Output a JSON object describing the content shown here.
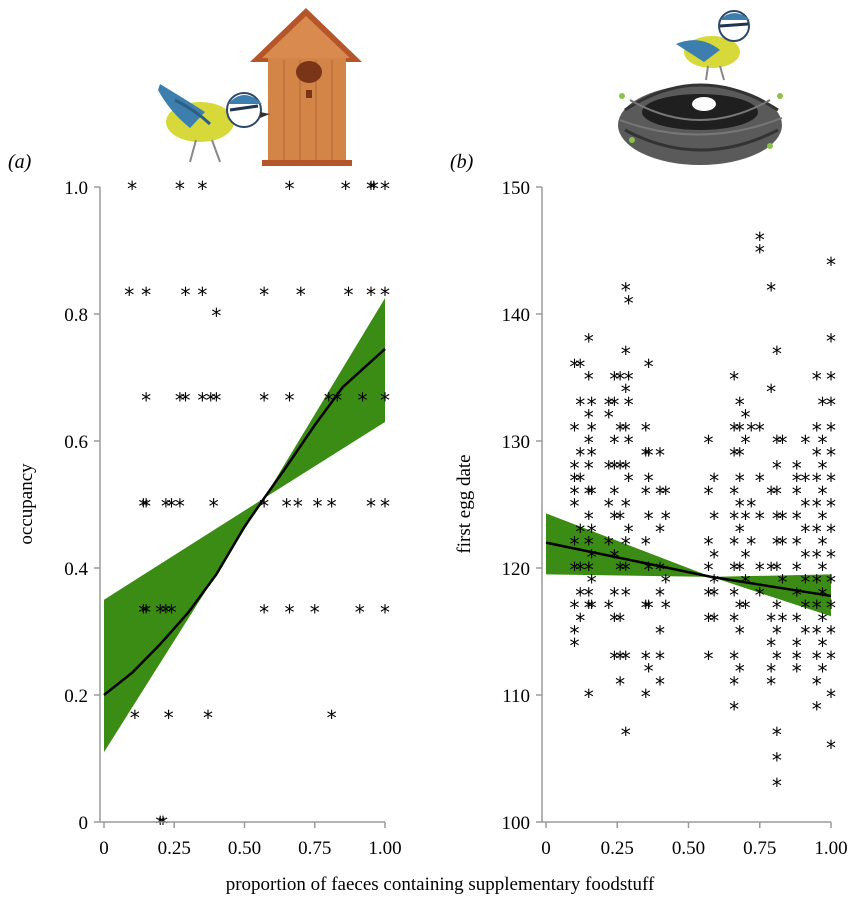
{
  "figure": {
    "shared_xlabel": "proportion of faeces containing supplementary foodstuff",
    "colors": {
      "band": "#3a8c14",
      "line": "#000000",
      "axis": "#9a9a9a",
      "points": "#000000"
    },
    "illustrations": [
      {
        "name": "blue-tit-with-nest-box-icon",
        "panel": "a"
      },
      {
        "name": "blue-tit-on-nest-icon",
        "panel": "b"
      }
    ]
  },
  "chart_data": [
    {
      "panel_label": "(a)",
      "type": "scatter",
      "title": "",
      "xlabel": "",
      "ylabel": "occupancy",
      "xlim": [
        0,
        1
      ],
      "ylim": [
        0,
        1
      ],
      "x_ticks": [
        "0",
        "0.25",
        "0.50",
        "0.75",
        "1.00"
      ],
      "y_ticks": [
        "0",
        "0.2",
        "0.4",
        "0.6",
        "0.8",
        "1.0"
      ],
      "y_tick_values": [
        0,
        0.2,
        0.4,
        0.6,
        0.8,
        1.0
      ],
      "grid": false,
      "marker": "*",
      "fit": {
        "x": [
          0,
          0.1,
          0.2,
          0.3,
          0.4,
          0.5,
          0.57,
          0.65,
          0.75,
          0.85,
          0.95,
          1.0
        ],
        "y": [
          0.2,
          0.235,
          0.28,
          0.33,
          0.39,
          0.465,
          0.51,
          0.56,
          0.625,
          0.685,
          0.725,
          0.745
        ]
      },
      "ci_band": {
        "x": [
          0,
          0.57,
          1.0
        ],
        "lower": [
          0.11,
          0.51,
          0.63
        ],
        "upper": [
          0.35,
          0.51,
          0.825
        ]
      },
      "points": {
        "x": [
          0.1,
          0.27,
          0.35,
          0.66,
          0.86,
          0.95,
          0.96,
          1.0,
          0.09,
          0.15,
          0.29,
          0.35,
          0.4,
          0.57,
          0.7,
          0.87,
          0.95,
          1.0,
          0.15,
          0.27,
          0.29,
          0.35,
          0.38,
          0.4,
          0.57,
          0.66,
          0.8,
          0.83,
          0.92,
          1.0,
          0.14,
          0.15,
          0.22,
          0.24,
          0.27,
          0.39,
          0.57,
          0.65,
          0.69,
          0.76,
          0.81,
          0.95,
          1.0,
          0.14,
          0.15,
          0.2,
          0.22,
          0.24,
          0.57,
          0.66,
          0.75,
          0.91,
          1.0,
          0.11,
          0.23,
          0.37,
          0.81,
          0.2,
          0.21
        ],
        "y": [
          1.0,
          1.0,
          1.0,
          1.0,
          1.0,
          1.0,
          1.0,
          1.0,
          0.833,
          0.833,
          0.833,
          0.833,
          0.8,
          0.833,
          0.833,
          0.833,
          0.833,
          0.833,
          0.667,
          0.667,
          0.667,
          0.667,
          0.667,
          0.667,
          0.667,
          0.667,
          0.667,
          0.667,
          0.667,
          0.667,
          0.5,
          0.5,
          0.5,
          0.5,
          0.5,
          0.5,
          0.5,
          0.5,
          0.5,
          0.5,
          0.5,
          0.5,
          0.5,
          0.333,
          0.333,
          0.333,
          0.333,
          0.333,
          0.333,
          0.333,
          0.333,
          0.333,
          0.333,
          0.167,
          0.167,
          0.167,
          0.167,
          0.0,
          0.0
        ]
      }
    },
    {
      "panel_label": "(b)",
      "type": "scatter",
      "title": "",
      "xlabel": "",
      "ylabel": "first egg date",
      "xlim": [
        0,
        1
      ],
      "ylim": [
        100,
        150
      ],
      "x_ticks": [
        "0",
        "0.25",
        "0.50",
        "0.75",
        "1.00"
      ],
      "y_ticks": [
        "100",
        "110",
        "120",
        "130",
        "140",
        "150"
      ],
      "y_tick_values": [
        100,
        110,
        120,
        130,
        140,
        150
      ],
      "grid": false,
      "marker": "*",
      "fit": {
        "x": [
          0,
          0.58,
          1.0
        ],
        "y": [
          122,
          119.3,
          117.8
        ]
      },
      "ci_band": {
        "x": [
          0,
          0.58,
          1.0
        ],
        "lower": [
          119.5,
          119.3,
          116.2
        ],
        "upper": [
          124.3,
          119.3,
          119.5
        ]
      },
      "points": {
        "columns": [
          {
            "x": 0.1,
            "y": [
              136,
              131,
              128,
              127,
              126,
              125,
              122,
              120,
              117,
              115,
              114
            ]
          },
          {
            "x": 0.12,
            "y": [
              136,
              133,
              129,
              127,
              123,
              120,
              118,
              116
            ]
          },
          {
            "x": 0.15,
            "y": [
              138,
              135,
              132,
              130,
              128,
              126,
              124,
              122,
              120,
              118,
              117,
              110
            ]
          },
          {
            "x": 0.16,
            "y": [
              133,
              131,
              129,
              126,
              123,
              121,
              119,
              117
            ]
          },
          {
            "x": 0.22,
            "y": [
              133,
              132,
              128,
              125,
              122,
              117
            ]
          },
          {
            "x": 0.24,
            "y": [
              135,
              133,
              130,
              128,
              126,
              124,
              121,
              118,
              116,
              113
            ]
          },
          {
            "x": 0.26,
            "y": [
              135,
              131,
              128,
              124,
              120,
              116,
              113,
              111
            ]
          },
          {
            "x": 0.28,
            "y": [
              142,
              137,
              134,
              131,
              128,
              125,
              122,
              120,
              118,
              113,
              107
            ]
          },
          {
            "x": 0.29,
            "y": [
              141,
              135,
              133,
              130,
              127,
              123
            ]
          },
          {
            "x": 0.35,
            "y": [
              131,
              129,
              126,
              122,
              117,
              113,
              110
            ]
          },
          {
            "x": 0.36,
            "y": [
              136,
              129,
              127,
              124,
              120,
              117,
              112
            ]
          },
          {
            "x": 0.4,
            "y": [
              129,
              126,
              123,
              120,
              118,
              115,
              113,
              111
            ]
          },
          {
            "x": 0.42,
            "y": [
              126,
              124,
              119,
              117
            ]
          },
          {
            "x": 0.57,
            "y": [
              130,
              126,
              122,
              120,
              118,
              116,
              113
            ]
          },
          {
            "x": 0.59,
            "y": [
              127,
              124,
              121,
              119,
              118,
              116
            ]
          },
          {
            "x": 0.66,
            "y": [
              135,
              131,
              129,
              126,
              124,
              122,
              120,
              118,
              116,
              113,
              111,
              109
            ]
          },
          {
            "x": 0.68,
            "y": [
              133,
              131,
              129,
              127,
              125,
              123,
              120,
              117,
              115,
              112
            ]
          },
          {
            "x": 0.7,
            "y": [
              132,
              130,
              124,
              121,
              119,
              117
            ]
          },
          {
            "x": 0.72,
            "y": [
              131,
              125,
              122
            ]
          },
          {
            "x": 0.75,
            "y": [
              146,
              145,
              131,
              127,
              124,
              120,
              118
            ]
          },
          {
            "x": 0.79,
            "y": [
              142,
              134,
              126,
              120,
              116,
              114,
              112,
              111
            ]
          },
          {
            "x": 0.81,
            "y": [
              137,
              130,
              128,
              126,
              124,
              122,
              120,
              117,
              115,
              113,
              107,
              105,
              103
            ]
          },
          {
            "x": 0.83,
            "y": [
              130,
              124,
              122,
              119,
              116
            ]
          },
          {
            "x": 0.88,
            "y": [
              128,
              127,
              126,
              124,
              122,
              120,
              118,
              116,
              114,
              112,
              113
            ]
          },
          {
            "x": 0.91,
            "y": [
              130,
              127,
              125,
              123,
              121,
              119,
              117,
              115
            ]
          },
          {
            "x": 0.95,
            "y": [
              135,
              131,
              129,
              127,
              125,
              123,
              121,
              119,
              117,
              115,
              113,
              111,
              109
            ]
          },
          {
            "x": 0.97,
            "y": [
              133,
              130,
              128,
              126,
              124,
              122,
              120,
              118,
              116,
              114,
              112
            ]
          },
          {
            "x": 1.0,
            "y": [
              144,
              138,
              135,
              133,
              131,
              129,
              127,
              125,
              123,
              121,
              119,
              117,
              115,
              113,
              110,
              106
            ]
          }
        ]
      }
    }
  ]
}
